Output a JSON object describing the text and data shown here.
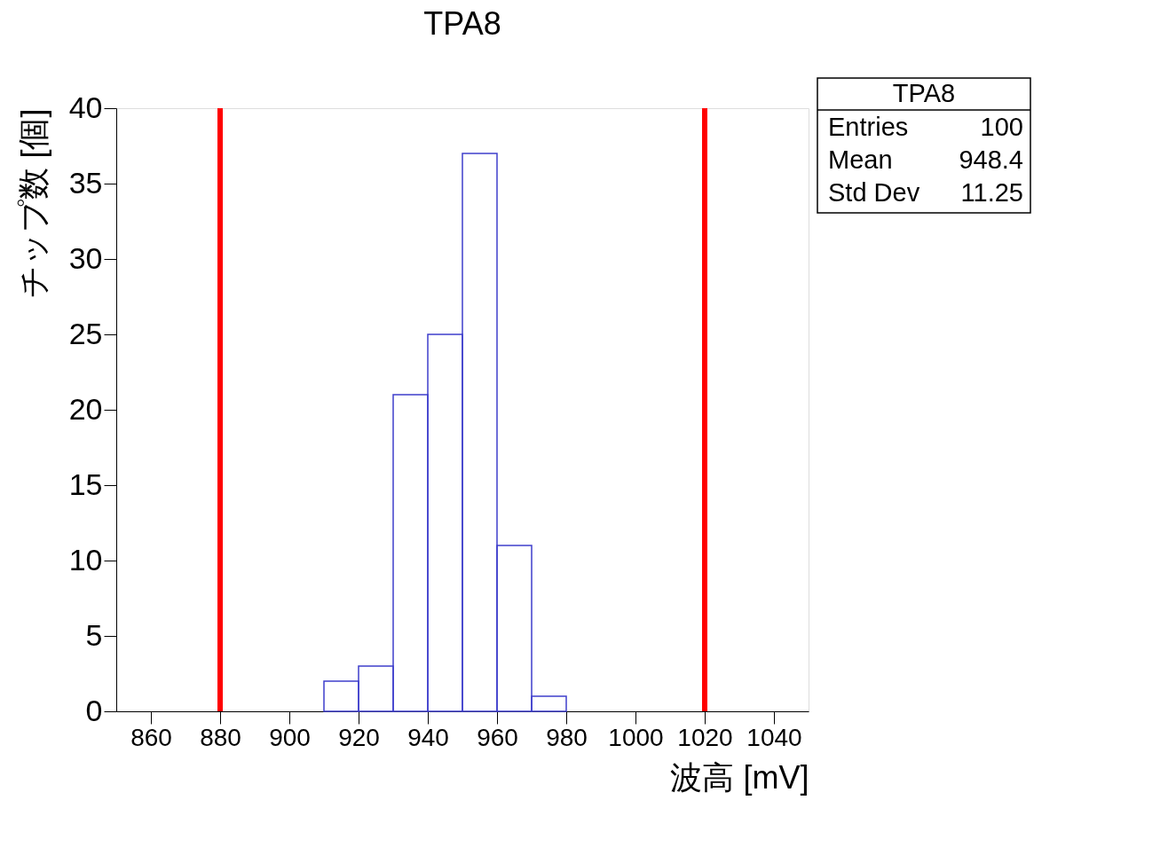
{
  "chart_data": {
    "type": "histogram",
    "title": "TPA8",
    "xlabel": "波高 [mV]",
    "ylabel": "チップ数 [個]",
    "bins": [
      910,
      920,
      930,
      940,
      950,
      960,
      970,
      980
    ],
    "values": [
      2,
      3,
      21,
      25,
      37,
      11,
      1
    ],
    "color": "#3f3fcc",
    "xlim": [
      850,
      1050
    ],
    "xticks": [
      860,
      880,
      900,
      920,
      940,
      960,
      980,
      1000,
      1020,
      1040
    ],
    "ylim": [
      0,
      40
    ],
    "yticks": [
      0,
      5,
      10,
      15,
      20,
      25,
      30,
      35,
      40
    ],
    "grid": false,
    "ref_lines": [
      {
        "axis": "x",
        "value": 880,
        "color": "#ff0000"
      },
      {
        "axis": "x",
        "value": 1020,
        "color": "#ff0000"
      }
    ],
    "annotations": [
      "TPA8",
      "Entries",
      "100",
      "Mean",
      "948.4",
      "Std Dev",
      "11.25"
    ]
  }
}
